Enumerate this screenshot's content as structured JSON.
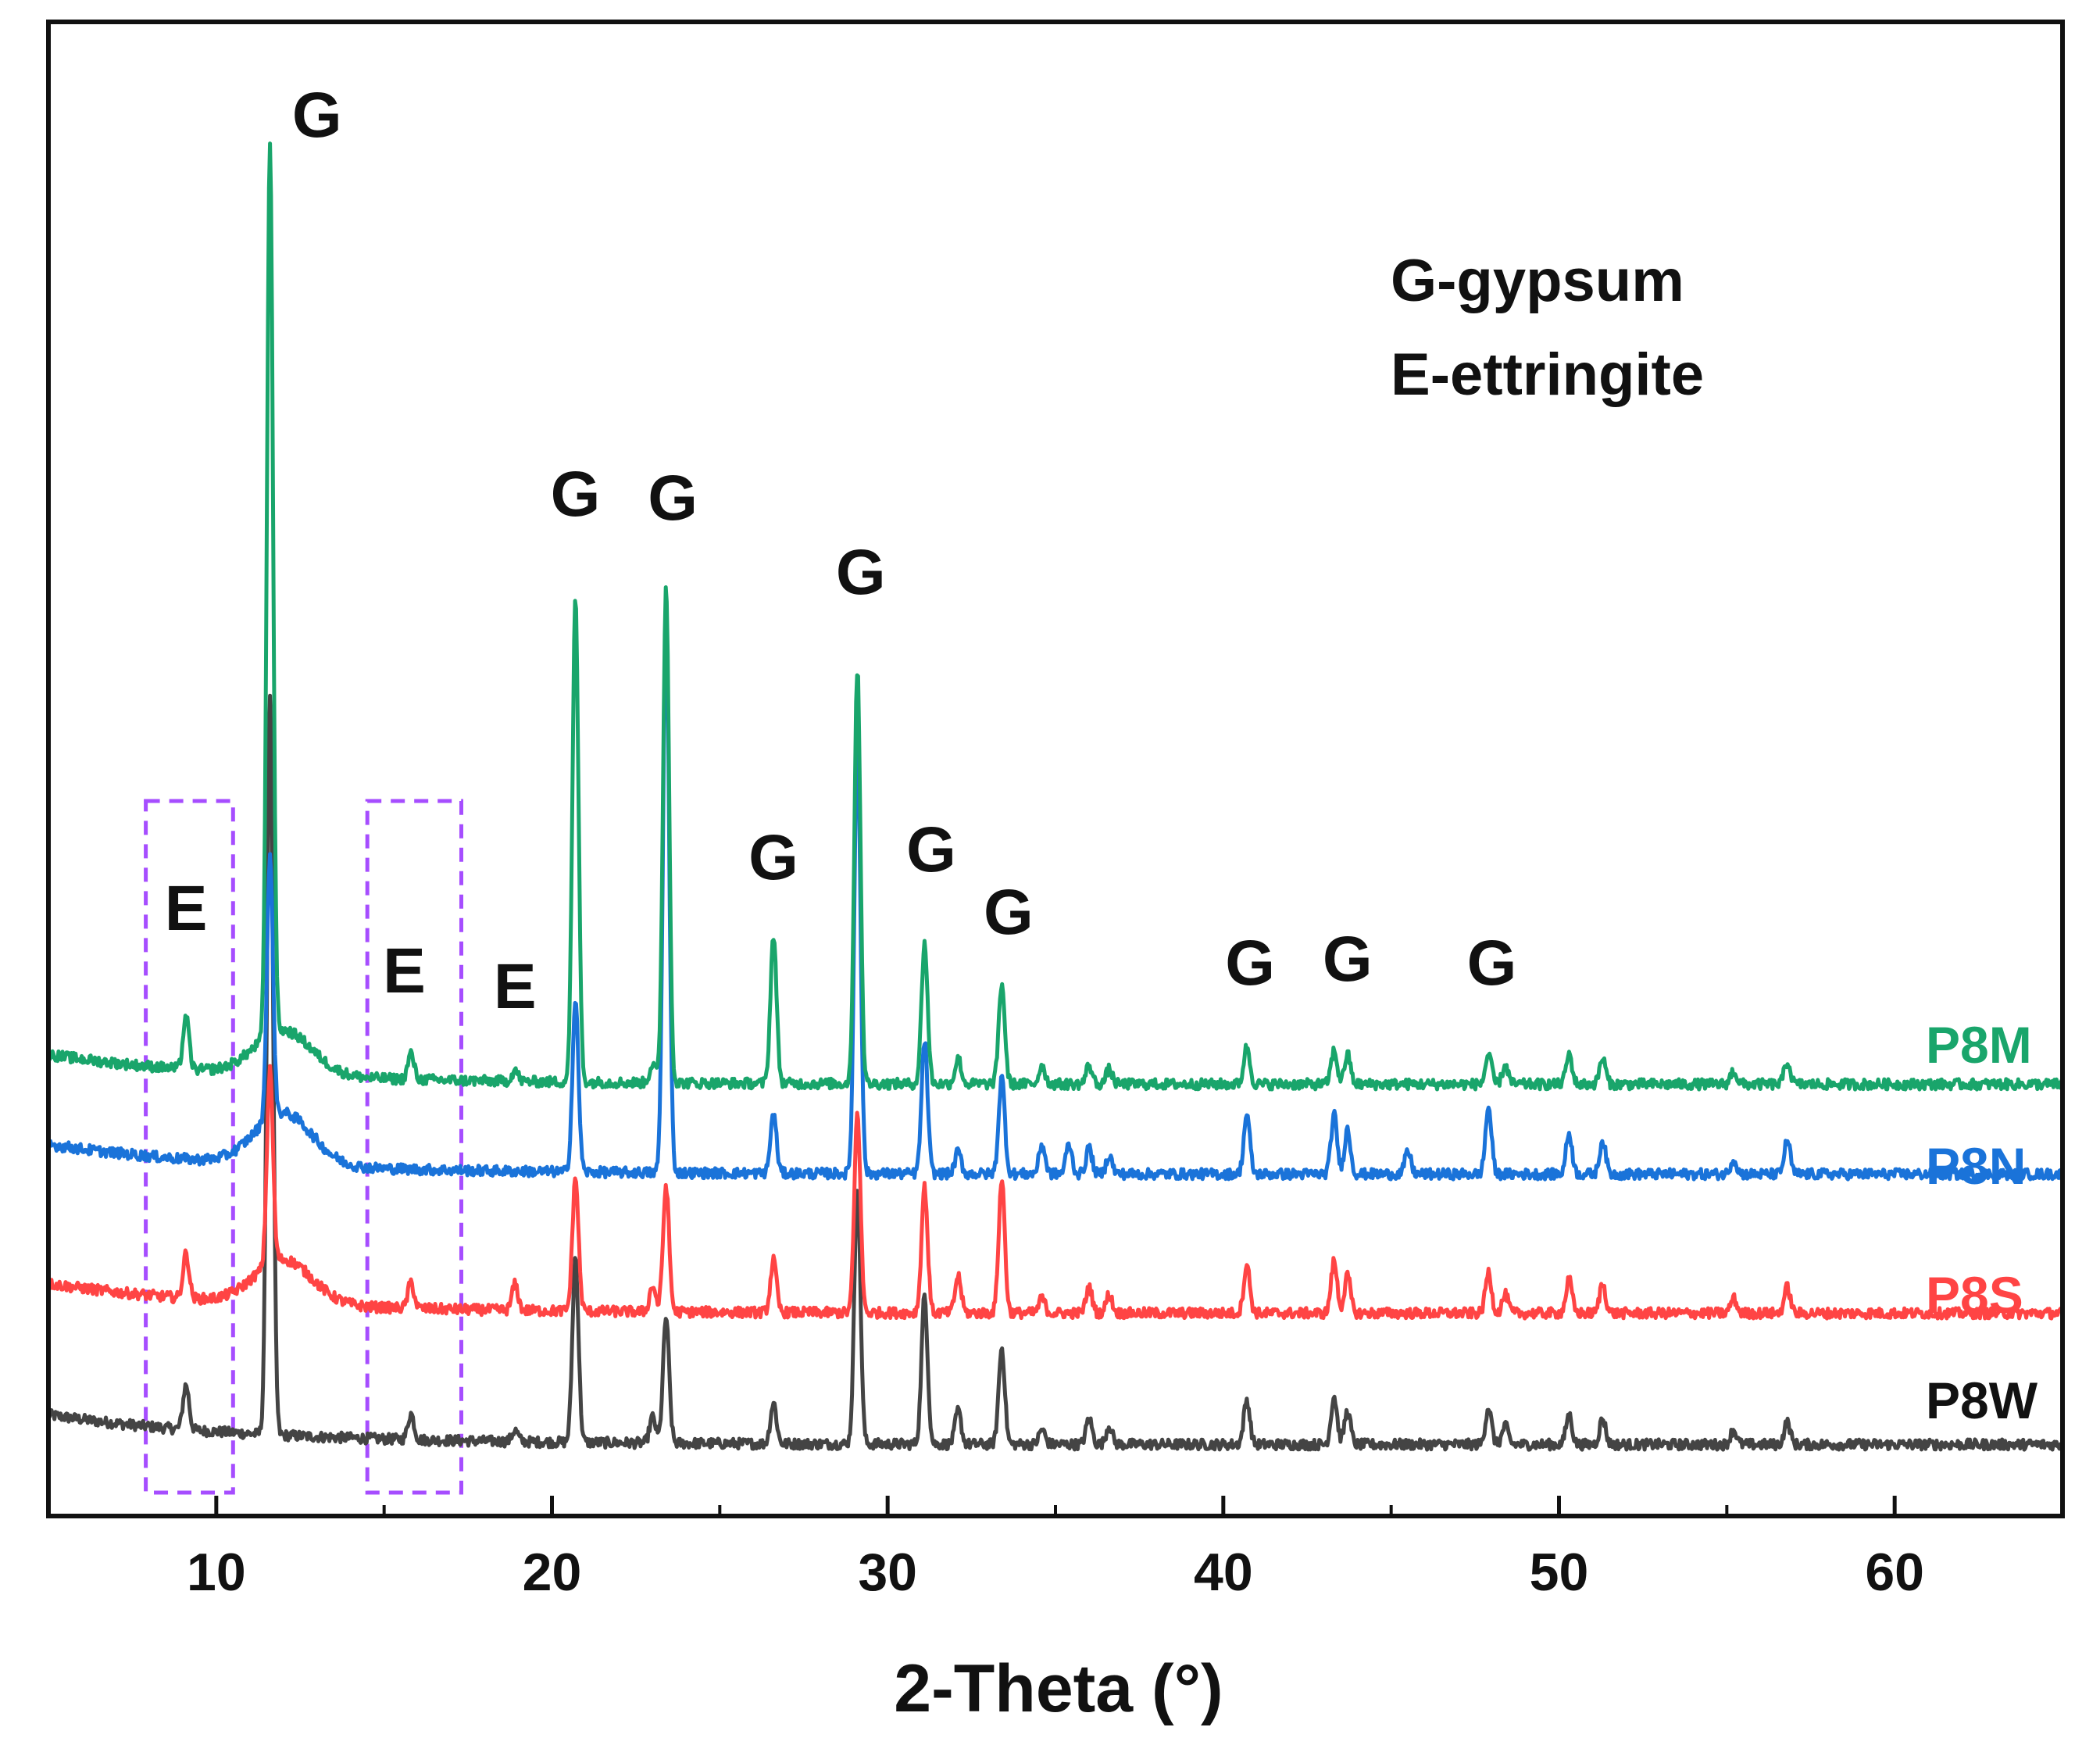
{
  "chart_data": {
    "type": "line",
    "title": "",
    "xlabel": "2-Theta (°)",
    "ylabel": "",
    "xlim": [
      5,
      65
    ],
    "xticks": [
      10,
      20,
      30,
      40,
      50,
      60
    ],
    "xtick_labels": [
      "10",
      "20",
      "30",
      "40",
      "50",
      "60"
    ],
    "legend_text": [
      "G-gypsum",
      "E-ettringite"
    ],
    "series": [
      {
        "name": "P8W",
        "color": "#444444",
        "baseline": 0,
        "peaks": [
          [
            9.1,
            60
          ],
          [
            11.6,
            1000
          ],
          [
            15.8,
            35
          ],
          [
            18.9,
            15
          ],
          [
            20.7,
            250
          ],
          [
            23.0,
            35
          ],
          [
            23.4,
            170
          ],
          [
            26.6,
            55
          ],
          [
            29.1,
            350
          ],
          [
            31.1,
            200
          ],
          [
            32.1,
            45
          ],
          [
            33.4,
            130
          ],
          [
            34.6,
            20
          ],
          [
            36.0,
            35
          ],
          [
            36.6,
            25
          ],
          [
            40.7,
            60
          ],
          [
            43.3,
            65
          ],
          [
            43.7,
            45
          ],
          [
            47.9,
            50
          ],
          [
            48.4,
            25
          ],
          [
            50.3,
            40
          ],
          [
            51.3,
            35
          ],
          [
            55.2,
            20
          ],
          [
            56.8,
            30
          ]
        ]
      },
      {
        "name": "P8S",
        "color": "#ff4444",
        "baseline": 0,
        "peaks": [
          [
            9.1,
            60
          ],
          [
            11.6,
            260
          ],
          [
            15.8,
            35
          ],
          [
            18.9,
            35
          ],
          [
            20.7,
            180
          ],
          [
            23.0,
            35
          ],
          [
            23.4,
            170
          ],
          [
            26.6,
            70
          ],
          [
            29.1,
            270
          ],
          [
            31.1,
            170
          ],
          [
            32.1,
            50
          ],
          [
            33.4,
            180
          ],
          [
            34.6,
            20
          ],
          [
            36.0,
            35
          ],
          [
            36.6,
            25
          ],
          [
            40.7,
            65
          ],
          [
            43.3,
            70
          ],
          [
            43.7,
            50
          ],
          [
            47.9,
            55
          ],
          [
            48.4,
            25
          ],
          [
            50.3,
            45
          ],
          [
            51.3,
            40
          ],
          [
            55.2,
            20
          ],
          [
            56.8,
            35
          ]
        ]
      },
      {
        "name": "P8N",
        "color": "#1a73d9",
        "baseline": 0,
        "peaks": [
          [
            11.6,
            350
          ],
          [
            20.7,
            230
          ],
          [
            23.4,
            760
          ],
          [
            26.6,
            80
          ],
          [
            29.1,
            600
          ],
          [
            31.1,
            180
          ],
          [
            32.1,
            30
          ],
          [
            33.4,
            130
          ],
          [
            34.6,
            40
          ],
          [
            35.4,
            40
          ],
          [
            36.0,
            35
          ],
          [
            36.6,
            25
          ],
          [
            40.7,
            80
          ],
          [
            43.3,
            80
          ],
          [
            43.7,
            60
          ],
          [
            45.5,
            30
          ],
          [
            47.9,
            90
          ],
          [
            50.3,
            55
          ],
          [
            51.3,
            45
          ],
          [
            55.2,
            20
          ],
          [
            56.8,
            45
          ]
        ]
      },
      {
        "name": "P8M",
        "color": "#19a56b",
        "baseline": 0,
        "peaks": [
          [
            9.1,
            70
          ],
          [
            11.6,
            1200
          ],
          [
            15.8,
            35
          ],
          [
            18.9,
            15
          ],
          [
            20.7,
            650
          ],
          [
            23.0,
            25
          ],
          [
            23.4,
            670
          ],
          [
            26.6,
            200
          ],
          [
            29.1,
            560
          ],
          [
            31.1,
            190
          ],
          [
            32.1,
            35
          ],
          [
            33.4,
            135
          ],
          [
            34.6,
            25
          ],
          [
            36.0,
            25
          ],
          [
            36.6,
            20
          ],
          [
            40.7,
            50
          ],
          [
            43.3,
            45
          ],
          [
            43.7,
            40
          ],
          [
            47.9,
            40
          ],
          [
            48.4,
            25
          ],
          [
            50.3,
            40
          ],
          [
            51.3,
            35
          ],
          [
            55.2,
            18
          ],
          [
            56.8,
            30
          ]
        ]
      }
    ],
    "annotations": [
      {
        "text": "G",
        "x": 13.0
      },
      {
        "text": "G",
        "x": 20.7
      },
      {
        "text": "G",
        "x": 23.6
      },
      {
        "text": "G",
        "x": 29.2
      },
      {
        "text": "G",
        "x": 26.6
      },
      {
        "text": "G",
        "x": 31.3
      },
      {
        "text": "G",
        "x": 33.6
      },
      {
        "text": "G",
        "x": 40.8
      },
      {
        "text": "G",
        "x": 43.7
      },
      {
        "text": "G",
        "x": 48.0
      },
      {
        "text": "E",
        "x": 9.1
      },
      {
        "text": "E",
        "x": 15.6
      },
      {
        "text": "E",
        "x": 18.9
      }
    ],
    "highlight_boxes": [
      {
        "x_range": [
          7.9,
          10.5
        ],
        "color": "#a64dff"
      },
      {
        "x_range": [
          14.5,
          17.3
        ],
        "color": "#a64dff"
      }
    ]
  }
}
